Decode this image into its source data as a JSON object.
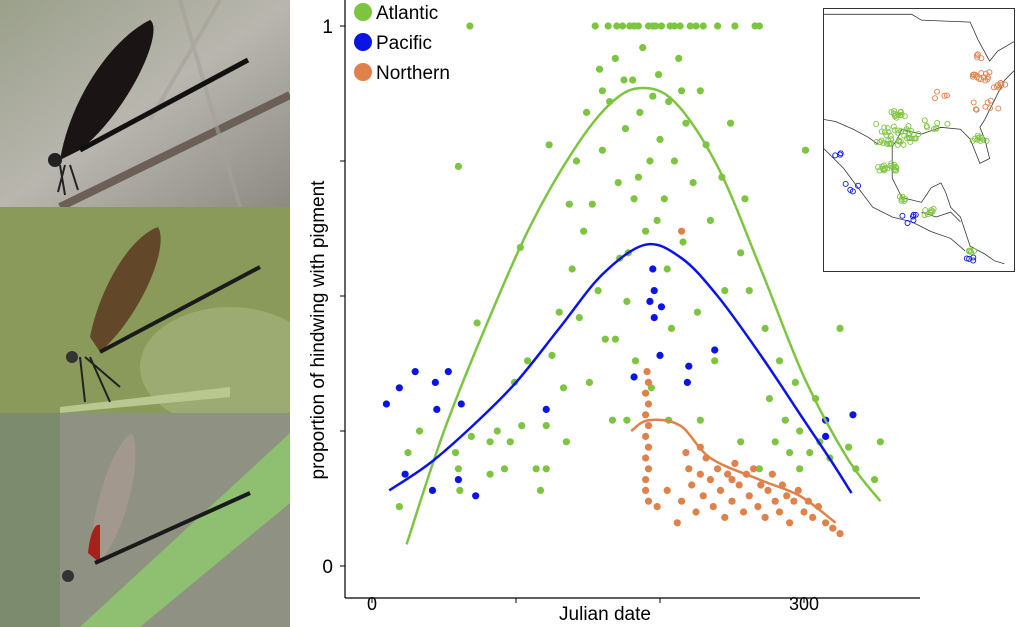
{
  "photos": [
    {
      "caption_icon": "dragonfly-dark-wings-photo"
    },
    {
      "caption_icon": "dragonfly-amber-wings-photo"
    },
    {
      "caption_icon": "dragonfly-red-patch-photo"
    }
  ],
  "chart_data": {
    "type": "scatter",
    "title": "",
    "xlabel": "Julian date",
    "ylabel": "proportion of hindwing with pigment",
    "xlim": [
      -10,
      380
    ],
    "ylim": [
      -0.06,
      1.0
    ],
    "x_ticks": [
      0,
      100,
      200,
      300
    ],
    "x_tick_labels": [
      "0",
      "",
      "",
      "300"
    ],
    "y_ticks": [
      0,
      0.25,
      0.5,
      0.75,
      1
    ],
    "y_tick_labels": [
      "0",
      "",
      "",
      "",
      "1"
    ],
    "legend_position": "top-left",
    "series": [
      {
        "name": "Atlantic",
        "color": "#7dc540",
        "points": [
          [
            19,
            0.11
          ],
          [
            25,
            0.21
          ],
          [
            33,
            0.25
          ],
          [
            58,
            0.21
          ],
          [
            60,
            0.18
          ],
          [
            61,
            0.14
          ],
          [
            69,
            0.24
          ],
          [
            73,
            0.45
          ],
          [
            60,
            0.74
          ],
          [
            68,
            1.0
          ],
          [
            82,
            0.23
          ],
          [
            87,
            0.25
          ],
          [
            96,
            0.23
          ],
          [
            99,
            0.34
          ],
          [
            103,
            0.59
          ],
          [
            104,
            0.26
          ],
          [
            108,
            0.38
          ],
          [
            114,
            0.18
          ],
          [
            117,
            0.14
          ],
          [
            121,
            0.26
          ],
          [
            123,
            0.78
          ],
          [
            125,
            0.39
          ],
          [
            130,
            0.47
          ],
          [
            133,
            0.33
          ],
          [
            135,
            0.23
          ],
          [
            137,
            0.67
          ],
          [
            139,
            0.55
          ],
          [
            142,
            0.75
          ],
          [
            144,
            0.46
          ],
          [
            147,
            0.62
          ],
          [
            149,
            0.84
          ],
          [
            151,
            0.34
          ],
          [
            153,
            0.67
          ],
          [
            155,
            1.0
          ],
          [
            157,
            0.51
          ],
          [
            158,
            0.92
          ],
          [
            160,
            0.77
          ],
          [
            162,
            0.42
          ],
          [
            164,
            1.0
          ],
          [
            165,
            0.86
          ],
          [
            167,
            0.27
          ],
          [
            169,
            0.94
          ],
          [
            171,
            0.71
          ],
          [
            172,
            0.57
          ],
          [
            174,
            1.0
          ],
          [
            176,
            0.81
          ],
          [
            177,
            0.49
          ],
          [
            179,
            1.0
          ],
          [
            181,
            0.9
          ],
          [
            182,
            0.68
          ],
          [
            183,
            0.38
          ],
          [
            185,
            1.0
          ],
          [
            186,
            0.84
          ],
          [
            188,
            0.96
          ],
          [
            190,
            0.62
          ],
          [
            192,
            1.0
          ],
          [
            193,
            0.75
          ],
          [
            194,
            0.33
          ],
          [
            197,
            1.0
          ],
          [
            199,
            0.91
          ],
          [
            200,
            0.79
          ],
          [
            201,
            1.0
          ],
          [
            203,
            0.68
          ],
          [
            206,
            0.86
          ],
          [
            207,
            1.0
          ],
          [
            208,
            0.44
          ],
          [
            210,
            0.75
          ],
          [
            213,
            0.94
          ],
          [
            214,
            1.0
          ],
          [
            216,
            0.6
          ],
          [
            218,
            0.82
          ],
          [
            221,
            1.0
          ],
          [
            223,
            0.71
          ],
          [
            226,
            0.47
          ],
          [
            228,
            0.88
          ],
          [
            230,
            1.0
          ],
          [
            232,
            0.78
          ],
          [
            235,
            0.64
          ],
          [
            238,
            0.38
          ],
          [
            240,
            1.0
          ],
          [
            243,
            0.72
          ],
          [
            245,
            0.51
          ],
          [
            249,
            0.82
          ],
          [
            252,
            1.0
          ],
          [
            256,
            0.58
          ],
          [
            259,
            0.68
          ],
          [
            262,
            0.51
          ],
          [
            266,
            1.0
          ],
          [
            269,
            1.0
          ],
          [
            273,
            0.44
          ],
          [
            276,
            0.31
          ],
          [
            280,
            0.23
          ],
          [
            283,
            0.38
          ],
          [
            287,
            0.27
          ],
          [
            290,
            0.21
          ],
          [
            294,
            0.34
          ],
          [
            297,
            0.25
          ],
          [
            301,
            0.77
          ],
          [
            304,
            0.21
          ],
          [
            308,
            0.31
          ],
          [
            311,
            0.23
          ],
          [
            318,
            0.2
          ],
          [
            325,
            0.44
          ],
          [
            331,
            0.22
          ],
          [
            336,
            0.18
          ],
          [
            349,
            0.16
          ],
          [
            353,
            0.23
          ],
          [
            121,
            0.18
          ],
          [
            92,
            0.18
          ],
          [
            82,
            0.17
          ],
          [
            169,
            0.42
          ],
          [
            177,
            0.27
          ],
          [
            206,
            0.27
          ],
          [
            228,
            0.27
          ],
          [
            256,
            0.23
          ],
          [
            269,
            0.18
          ],
          [
            297,
            0.18
          ],
          [
            170,
            1.0
          ],
          [
            182,
            1.0
          ],
          [
            195,
            1.0
          ],
          [
            210,
            1.0
          ],
          [
            225,
            1.0
          ],
          [
            160,
            0.88
          ],
          [
            175,
            0.9
          ],
          [
            195,
            0.87
          ],
          [
            215,
            0.88
          ],
          [
            185,
            0.72
          ],
          [
            205,
            0.55
          ],
          [
            178,
            0.58
          ],
          [
            198,
            0.64
          ]
        ],
        "fit": [
          [
            24,
            0.04
          ],
          [
            50,
            0.25
          ],
          [
            80,
            0.45
          ],
          [
            110,
            0.63
          ],
          [
            140,
            0.77
          ],
          [
            165,
            0.855
          ],
          [
            186,
            0.885
          ],
          [
            210,
            0.86
          ],
          [
            240,
            0.74
          ],
          [
            270,
            0.55
          ],
          [
            300,
            0.35
          ],
          [
            330,
            0.2
          ],
          [
            353,
            0.12
          ]
        ]
      },
      {
        "name": "Pacific",
        "color": "#0a14e6",
        "points": [
          [
            10,
            0.3
          ],
          [
            19,
            0.33
          ],
          [
            30,
            0.36
          ],
          [
            44,
            0.34
          ],
          [
            53,
            0.36
          ],
          [
            45,
            0.29
          ],
          [
            62,
            0.3
          ],
          [
            23,
            0.17
          ],
          [
            42,
            0.14
          ],
          [
            60,
            0.16
          ],
          [
            72,
            0.13
          ],
          [
            121,
            0.29
          ],
          [
            195,
            0.55
          ],
          [
            196,
            0.51
          ],
          [
            193,
            0.49
          ],
          [
            196,
            0.46
          ],
          [
            201,
            0.48
          ],
          [
            219,
            0.34
          ],
          [
            220,
            0.37
          ],
          [
            238,
            0.4
          ],
          [
            200,
            0.39
          ],
          [
            182,
            0.35
          ],
          [
            334,
            0.28
          ],
          [
            315,
            0.24
          ],
          [
            315,
            0.27
          ]
        ],
        "fit": [
          [
            12,
            0.14
          ],
          [
            40,
            0.19
          ],
          [
            70,
            0.26
          ],
          [
            100,
            0.34
          ],
          [
            130,
            0.44
          ],
          [
            160,
            0.54
          ],
          [
            190,
            0.595
          ],
          [
            215,
            0.57
          ],
          [
            240,
            0.5
          ],
          [
            270,
            0.39
          ],
          [
            300,
            0.27
          ],
          [
            320,
            0.19
          ],
          [
            333,
            0.135
          ]
        ]
      },
      {
        "name": "Northern",
        "color": "#e0814a",
        "points": [
          [
            190,
            0.16
          ],
          [
            192,
            0.18
          ],
          [
            190,
            0.2
          ],
          [
            192,
            0.22
          ],
          [
            190,
            0.24
          ],
          [
            192,
            0.26
          ],
          [
            190,
            0.28
          ],
          [
            192,
            0.3
          ],
          [
            190,
            0.32
          ],
          [
            192,
            0.34
          ],
          [
            191,
            0.36
          ],
          [
            190,
            0.14
          ],
          [
            192,
            0.12
          ],
          [
            215,
            0.62
          ],
          [
            215,
            0.12
          ],
          [
            220,
            0.18
          ],
          [
            222,
            0.15
          ],
          [
            225,
            0.1
          ],
          [
            228,
            0.17
          ],
          [
            230,
            0.13
          ],
          [
            232,
            0.2
          ],
          [
            235,
            0.16
          ],
          [
            237,
            0.11
          ],
          [
            240,
            0.18
          ],
          [
            242,
            0.14
          ],
          [
            245,
            0.09
          ],
          [
            247,
            0.17
          ],
          [
            250,
            0.12
          ],
          [
            252,
            0.19
          ],
          [
            255,
            0.15
          ],
          [
            258,
            0.1
          ],
          [
            260,
            0.17
          ],
          [
            262,
            0.13
          ],
          [
            265,
            0.18
          ],
          [
            268,
            0.11
          ],
          [
            270,
            0.15
          ],
          [
            273,
            0.09
          ],
          [
            275,
            0.14
          ],
          [
            278,
            0.17
          ],
          [
            280,
            0.12
          ],
          [
            283,
            0.1
          ],
          [
            285,
            0.15
          ],
          [
            288,
            0.13
          ],
          [
            290,
            0.08
          ],
          [
            293,
            0.12
          ],
          [
            296,
            0.14
          ],
          [
            300,
            0.1
          ],
          [
            303,
            0.12
          ],
          [
            306,
            0.09
          ],
          [
            310,
            0.11
          ],
          [
            315,
            0.08
          ],
          [
            320,
            0.07
          ],
          [
            325,
            0.06
          ],
          [
            228,
            0.22
          ],
          [
            218,
            0.21
          ],
          [
            250,
            0.16
          ],
          [
            212,
            0.08
          ],
          [
            205,
            0.14
          ],
          [
            198,
            0.11
          ]
        ],
        "fit": [
          [
            180,
            0.25
          ],
          [
            192,
            0.27
          ],
          [
            214,
            0.26
          ],
          [
            235,
            0.2
          ],
          [
            269,
            0.16
          ],
          [
            297,
            0.13
          ],
          [
            322,
            0.08
          ]
        ]
      }
    ]
  },
  "map": {
    "icon": "range-map-inset"
  }
}
